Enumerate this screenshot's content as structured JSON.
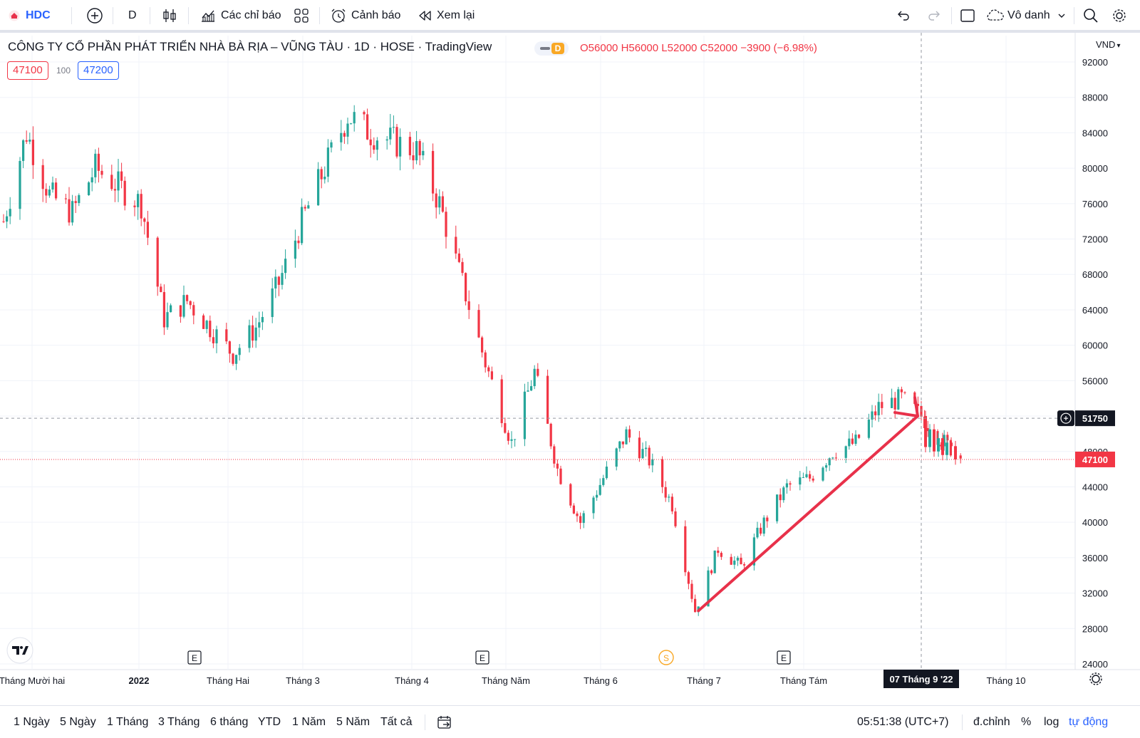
{
  "toolbar": {
    "symbol": "HDC",
    "interval": "D",
    "indicators_label": "Các chỉ báo",
    "alerts_label": "Cảnh báo",
    "replay_label": "Xem lại",
    "layout_label": "Vô danh"
  },
  "legend": {
    "title": "CÔNG TY CỔ PHẦN PHÁT TRIỂN NHÀ BÀ RỊA – VŨNG TÀU · 1D · HOSE · TradingView",
    "o_label": "O",
    "o_value": "56000",
    "h_label": "H",
    "h_value": "56000",
    "l_label": "L",
    "l_value": "52000",
    "c_label": "C",
    "c_value": "52000",
    "change": "−3900 (−6.98%)",
    "bid": "47100",
    "spread": "100",
    "ask": "47200",
    "d_badge": "D"
  },
  "currency": "VND",
  "crosshair": {
    "price_label": "51750",
    "date_label": "07 Tháng 9 '22"
  },
  "last_price_label": "47100",
  "events": {
    "earnings": "E",
    "split": "S"
  },
  "colors": {
    "up": "#26a69a",
    "down": "#f23645",
    "trendline": "#e8314a",
    "grid": "#f0f3fa",
    "accent": "#2962ff"
  },
  "bottombar": {
    "ranges": [
      "1 Ngày",
      "5 Ngày",
      "1 Tháng",
      "3 Tháng",
      "6 tháng",
      "YTD",
      "1 Năm",
      "5 Năm",
      "Tất cả"
    ],
    "time": "05:51:38 (UTC+7)",
    "adjust": "đ.chỉnh",
    "percent": "%",
    "log": "log",
    "auto": "tự động"
  },
  "chart_data": {
    "type": "candlestick",
    "title": "CÔNG TY CỔ PHẦN PHÁT TRIỂN NHÀ BÀ RỊA – VŨNG TÀU",
    "ylim": [
      24000,
      94000
    ],
    "y_ticks": [
      92000,
      88000,
      84000,
      80000,
      76000,
      72000,
      68000,
      64000,
      60000,
      56000,
      52000,
      48000,
      44000,
      40000,
      36000,
      32000,
      28000,
      24000
    ],
    "x_labels": [
      "Tháng Mười hai",
      "2022",
      "Tháng Hai",
      "Tháng 3",
      "Tháng 4",
      "Tháng Năm",
      "Tháng 6",
      "Tháng 7",
      "Tháng Tám",
      "Tháng 10"
    ],
    "close_path": [
      {
        "date": "2021-12-01",
        "close": 74000
      },
      {
        "date": "2021-12-08",
        "close": 84000
      },
      {
        "date": "2021-12-15",
        "close": 77000
      },
      {
        "date": "2021-12-22",
        "close": 75000
      },
      {
        "date": "2021-12-29",
        "close": 80000
      },
      {
        "date": "2022-01-05",
        "close": 78000
      },
      {
        "date": "2022-01-12",
        "close": 76000
      },
      {
        "date": "2022-01-19",
        "close": 63000
      },
      {
        "date": "2022-01-26",
        "close": 65000
      },
      {
        "date": "2022-02-09",
        "close": 59000
      },
      {
        "date": "2022-02-16",
        "close": 62000
      },
      {
        "date": "2022-02-23",
        "close": 67000
      },
      {
        "date": "2022-03-02",
        "close": 74000
      },
      {
        "date": "2022-03-09",
        "close": 80000
      },
      {
        "date": "2022-03-16",
        "close": 86000
      },
      {
        "date": "2022-03-23",
        "close": 84000
      },
      {
        "date": "2022-03-30",
        "close": 83000
      },
      {
        "date": "2022-04-06",
        "close": 82000
      },
      {
        "date": "2022-04-13",
        "close": 76000
      },
      {
        "date": "2022-04-20",
        "close": 67000
      },
      {
        "date": "2022-04-27",
        "close": 58000
      },
      {
        "date": "2022-05-05",
        "close": 49000
      },
      {
        "date": "2022-05-12",
        "close": 57000
      },
      {
        "date": "2022-05-19",
        "close": 46000
      },
      {
        "date": "2022-05-26",
        "close": 40000
      },
      {
        "date": "2022-06-02",
        "close": 45000
      },
      {
        "date": "2022-06-09",
        "close": 50000
      },
      {
        "date": "2022-06-16",
        "close": 47000
      },
      {
        "date": "2022-06-23",
        "close": 42000
      },
      {
        "date": "2022-06-30",
        "close": 30000
      },
      {
        "date": "2022-07-07",
        "close": 37000
      },
      {
        "date": "2022-07-14",
        "close": 35000
      },
      {
        "date": "2022-07-21",
        "close": 40000
      },
      {
        "date": "2022-07-28",
        "close": 44000
      },
      {
        "date": "2022-08-04",
        "close": 45000
      },
      {
        "date": "2022-08-11",
        "close": 48000
      },
      {
        "date": "2022-08-18",
        "close": 49000
      },
      {
        "date": "2022-08-25",
        "close": 53000
      },
      {
        "date": "2022-09-01",
        "close": 54000
      },
      {
        "date": "2022-09-07",
        "close": 52000
      },
      {
        "date": "2022-09-14",
        "close": 49000
      },
      {
        "date": "2022-09-20",
        "close": 47100
      }
    ],
    "last_price": 47100,
    "crosshair_price": 51750,
    "trendline": {
      "from": {
        "date": "2022-07-01",
        "price": 30000
      },
      "to": {
        "date": "2022-09-07",
        "price": 52000
      }
    }
  }
}
